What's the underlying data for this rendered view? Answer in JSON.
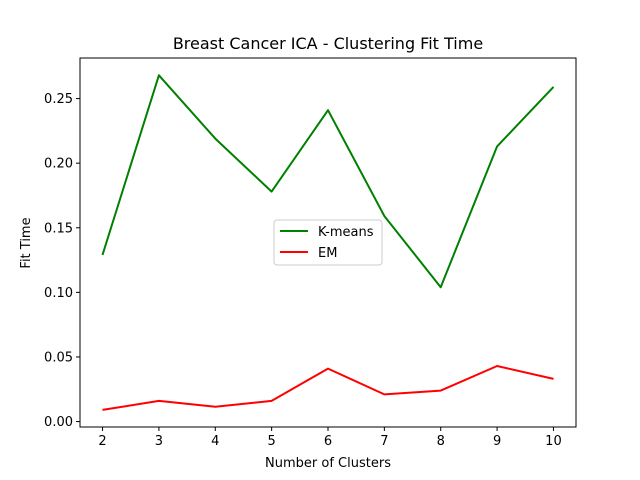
{
  "chart_data": {
    "type": "line",
    "title": "Breast Cancer ICA - Clustering Fit Time",
    "xlabel": "Number of Clusters",
    "ylabel": "Fit Time",
    "x": [
      2,
      3,
      4,
      5,
      6,
      7,
      8,
      9,
      10
    ],
    "xticks": [
      "2",
      "3",
      "4",
      "5",
      "6",
      "7",
      "8",
      "9",
      "10"
    ],
    "yticks": [
      "0.00",
      "0.05",
      "0.10",
      "0.15",
      "0.20",
      "0.25"
    ],
    "ylim": [
      -0.0042,
      0.2814
    ],
    "xlim": [
      1.6,
      10.4
    ],
    "series": [
      {
        "name": "K-means",
        "color": "#008000",
        "values": [
          0.129,
          0.268,
          0.219,
          0.178,
          0.241,
          0.159,
          0.104,
          0.213,
          0.259
        ]
      },
      {
        "name": "EM",
        "color": "#ff0000",
        "values": [
          0.009,
          0.016,
          0.0115,
          0.016,
          0.041,
          0.021,
          0.024,
          0.043,
          0.033
        ]
      }
    ],
    "legend": "center"
  }
}
